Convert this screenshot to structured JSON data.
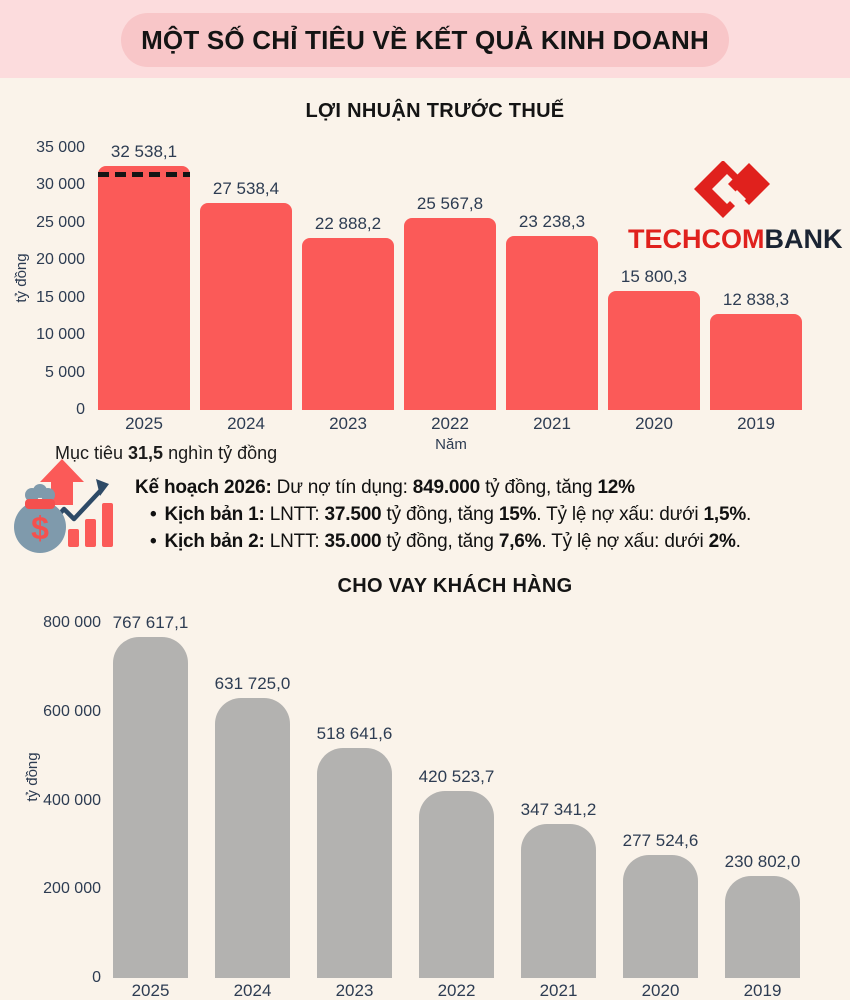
{
  "header": {
    "title": "MỘT SỐ CHỈ TIÊU VỀ KẾT QUẢ KINH DOANH"
  },
  "logo": {
    "part1": "TECHCOM",
    "part2": "BANK"
  },
  "icons": {
    "logo_mark": "techcombank-double-diamond",
    "plan_icon": "money-bag-with-growth-chart"
  },
  "colors": {
    "page_bg": "#faf3ea",
    "header_band": "#fcdcdd",
    "header_pill": "#f8c6c8",
    "bar_red": "#fb5a58",
    "bar_gray": "#b3b2b0",
    "text_navy": "#2d3c52",
    "logo_red": "#e0211d",
    "logo_dark": "#1b2433",
    "target_line": "#141414"
  },
  "target_note": {
    "segments": [
      {
        "text": "Mục tiêu ",
        "bold": false
      },
      {
        "text": "31,5",
        "bold": true
      },
      {
        "text": " nghìn tỷ đồng",
        "bold": false
      }
    ]
  },
  "plan": {
    "lines": [
      {
        "bullet": "",
        "segments": [
          {
            "text": "Kế hoạch 2026:",
            "bold": true
          },
          {
            "text": " Dư nợ tín dụng: ",
            "bold": false
          },
          {
            "text": "849.000",
            "bold": true
          },
          {
            "text": " tỷ đồng, tăng ",
            "bold": false
          },
          {
            "text": "12%",
            "bold": true
          }
        ]
      },
      {
        "bullet": "•",
        "segments": [
          {
            "text": "Kịch bản 1:",
            "bold": true
          },
          {
            "text": " LNTT: ",
            "bold": false
          },
          {
            "text": "37.500",
            "bold": true
          },
          {
            "text": " tỷ đồng, tăng ",
            "bold": false
          },
          {
            "text": "15%",
            "bold": true
          },
          {
            "text": ". Tỷ lệ nợ xấu: dưới ",
            "bold": false
          },
          {
            "text": "1,5%",
            "bold": true
          },
          {
            "text": ".",
            "bold": false
          }
        ]
      },
      {
        "bullet": "•",
        "segments": [
          {
            "text": "Kịch bản 2:",
            "bold": true
          },
          {
            "text": " LNTT: ",
            "bold": false
          },
          {
            "text": "35.000",
            "bold": true
          },
          {
            "text": " tỷ đồng, tăng ",
            "bold": false
          },
          {
            "text": "7,6%",
            "bold": true
          },
          {
            "text": ". Tỷ lệ nợ xấu: dưới ",
            "bold": false
          },
          {
            "text": "2%",
            "bold": true
          },
          {
            "text": ".",
            "bold": false
          }
        ]
      }
    ]
  },
  "chart_data": [
    {
      "type": "bar",
      "title": "LỢI NHUẬN TRƯỚC THUẾ",
      "categories": [
        "2025",
        "2024",
        "2023",
        "2022",
        "2021",
        "2020",
        "2019"
      ],
      "values": [
        32538.1,
        27538.4,
        22888.2,
        25567.8,
        23238.3,
        15800.3,
        12838.3
      ],
      "value_labels": [
        "32 538,1",
        "27 538,4",
        "22 888,2",
        "25 567,8",
        "23 238,3",
        "15 800,3",
        "12 838,3"
      ],
      "xlabel": "Năm",
      "ylabel": "tỷ đồng",
      "ylim": [
        0,
        35000
      ],
      "yticks": [
        35000,
        30000,
        25000,
        20000,
        15000,
        10000,
        5000,
        0
      ],
      "ytick_labels": [
        "35 000",
        "30 000",
        "25 000",
        "20 000",
        "15 000",
        "10 000",
        "5 000",
        "0"
      ],
      "bar_color": "#fb5a58",
      "grid": false,
      "legend": false,
      "target_line": {
        "value": 31500,
        "style": "dashed",
        "color": "#141414",
        "bar_index": 0
      }
    },
    {
      "type": "bar",
      "title": "CHO VAY KHÁCH HÀNG",
      "categories": [
        "2025",
        "2024",
        "2023",
        "2022",
        "2021",
        "2020",
        "2019"
      ],
      "values": [
        767617.1,
        631725.0,
        518641.6,
        420523.7,
        347341.2,
        277524.6,
        230802.0
      ],
      "value_labels": [
        "767 617,1",
        "631 725,0",
        "518 641,6",
        "420 523,7",
        "347 341,2",
        "277 524,6",
        "230 802,0"
      ],
      "xlabel": "",
      "ylabel": "tỷ đồng",
      "ylim": [
        0,
        800000
      ],
      "yticks": [
        800000,
        600000,
        400000,
        200000,
        0
      ],
      "ytick_labels": [
        "800 000",
        "600 000",
        "400 000",
        "200 000",
        "0"
      ],
      "bar_color": "#b3b2b0",
      "grid": false,
      "legend": false
    }
  ]
}
